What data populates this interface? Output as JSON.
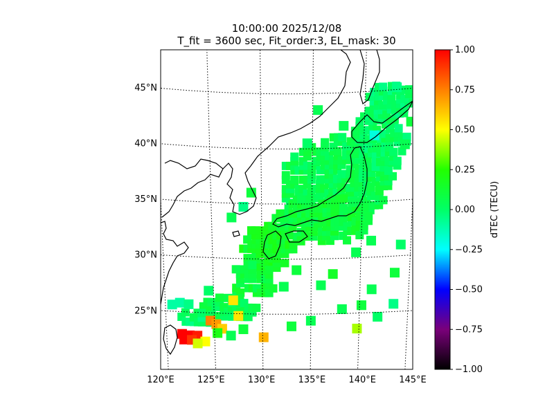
{
  "chart_data": {
    "type": "heatmap",
    "title": "10:00:00 2025/12/08",
    "subtitle": "T_fit = 3600 sec, Fit_order:3, EL_mask: 30",
    "x_ticks": [
      "120°E",
      "125°E",
      "130°E",
      "135°E",
      "140°E",
      "145°E"
    ],
    "y_ticks": [
      "25°N",
      "30°N",
      "35°N",
      "40°N",
      "45°N"
    ],
    "xlim": [
      120,
      145
    ],
    "ylim": [
      20,
      49
    ],
    "grid": true,
    "colorbar": {
      "label": "dTEC (TECU)",
      "range": [
        -1.0,
        1.0
      ],
      "ticks": [
        "1.00",
        "0.75",
        "0.50",
        "0.25",
        "0.00",
        "−0.25",
        "−0.50",
        "−0.75",
        "−1.00"
      ],
      "colormap_stops": [
        {
          "v": -1.0,
          "color": "#000000"
        },
        {
          "v": -0.75,
          "color": "#7a007a"
        },
        {
          "v": -0.5,
          "color": "#0000ff"
        },
        {
          "v": -0.25,
          "color": "#00ffff"
        },
        {
          "v": 0.0,
          "color": "#00ff66"
        },
        {
          "v": 0.25,
          "color": "#22ff00"
        },
        {
          "v": 0.5,
          "color": "#ffff00"
        },
        {
          "v": 0.75,
          "color": "#ff8000"
        },
        {
          "v": 1.0,
          "color": "#ff0000"
        }
      ]
    },
    "blobs": [
      {
        "lon": 137.5,
        "lat": 37.0,
        "rlon": 5.5,
        "rlat": 4.0,
        "value": 0.05
      },
      {
        "lon": 141.5,
        "lat": 40.5,
        "rlon": 2.8,
        "rlat": 3.2,
        "value": 0.02
      },
      {
        "lon": 142.5,
        "lat": 44.0,
        "rlon": 2.5,
        "rlat": 1.6,
        "value": 0.0
      },
      {
        "lon": 136.0,
        "lat": 33.5,
        "rlon": 5.0,
        "rlat": 2.3,
        "value": 0.1
      },
      {
        "lon": 130.5,
        "lat": 31.0,
        "rlon": 2.8,
        "rlat": 2.2,
        "value": 0.15
      },
      {
        "lon": 129.0,
        "lat": 28.0,
        "rlon": 2.5,
        "rlat": 1.5,
        "value": 0.1
      },
      {
        "lon": 126.5,
        "lat": 25.5,
        "rlon": 3.0,
        "rlat": 1.2,
        "value": 0.05
      },
      {
        "lon": 123.0,
        "lat": 24.5,
        "rlon": 1.8,
        "rlat": 0.8,
        "value": 0.0
      }
    ],
    "patches": [
      {
        "lon": 121.6,
        "lat": 23.0,
        "value": 1.0
      },
      {
        "lon": 122.4,
        "lat": 22.9,
        "value": 1.0
      },
      {
        "lon": 123.2,
        "lat": 22.9,
        "value": 0.95
      },
      {
        "lon": 121.8,
        "lat": 22.5,
        "value": 1.0
      },
      {
        "lon": 122.6,
        "lat": 22.5,
        "value": 0.9
      },
      {
        "lon": 124.6,
        "lat": 24.3,
        "value": 0.75
      },
      {
        "lon": 125.2,
        "lat": 24.0,
        "value": 0.7
      },
      {
        "lon": 125.8,
        "lat": 23.6,
        "value": 0.6
      },
      {
        "lon": 124.0,
        "lat": 22.4,
        "value": 0.5
      },
      {
        "lon": 123.2,
        "lat": 22.2,
        "value": 0.45
      },
      {
        "lon": 127.5,
        "lat": 24.8,
        "value": 0.55
      },
      {
        "lon": 127.0,
        "lat": 26.2,
        "value": 0.55
      },
      {
        "lon": 130.1,
        "lat": 22.9,
        "value": 0.65
      },
      {
        "lon": 139.8,
        "lat": 23.6,
        "value": 0.4
      },
      {
        "lon": 120.7,
        "lat": 25.6,
        "value": -0.1
      },
      {
        "lon": 121.5,
        "lat": 25.8,
        "value": -0.1
      },
      {
        "lon": 122.4,
        "lat": 25.7,
        "value": -0.05
      },
      {
        "lon": 143.0,
        "lat": 45.2,
        "value": -0.05
      },
      {
        "lon": 141.0,
        "lat": 41.0,
        "value": -0.2
      },
      {
        "lon": 128.2,
        "lat": 34.7,
        "value": -0.05
      },
      {
        "lon": 137.2,
        "lat": 28.6,
        "value": 0.15
      },
      {
        "lon": 136.0,
        "lat": 27.6,
        "value": 0.05
      },
      {
        "lon": 141.2,
        "lat": 27.1,
        "value": 0.05
      },
      {
        "lon": 143.5,
        "lat": 28.5,
        "value": 0.1
      },
      {
        "lon": 143.5,
        "lat": 25.7,
        "value": -0.05
      },
      {
        "lon": 141.9,
        "lat": 24.6,
        "value": 0.0
      },
      {
        "lon": 138.2,
        "lat": 25.4,
        "value": 0.05
      },
      {
        "lon": 140.2,
        "lat": 25.7,
        "value": 0.1
      },
      {
        "lon": 135.0,
        "lat": 24.4,
        "value": 0.05
      },
      {
        "lon": 133.0,
        "lat": 23.9,
        "value": 0.1
      },
      {
        "lon": 132.2,
        "lat": 27.5,
        "value": 0.05
      },
      {
        "lon": 133.5,
        "lat": 29.0,
        "value": 0.1
      },
      {
        "lon": 139.5,
        "lat": 30.5,
        "value": 0.05
      },
      {
        "lon": 141.0,
        "lat": 31.5,
        "value": 0.05
      },
      {
        "lon": 144.0,
        "lat": 31.0,
        "value": 0.0
      },
      {
        "lon": 127.0,
        "lat": 33.7,
        "value": 0.05
      },
      {
        "lon": 129.0,
        "lat": 36.0,
        "value": 0.1
      },
      {
        "lon": 135.5,
        "lat": 43.5,
        "value": 0.05
      },
      {
        "lon": 134.5,
        "lat": 40.5,
        "value": 0.0
      },
      {
        "lon": 138.0,
        "lat": 42.0,
        "value": 0.05
      },
      {
        "lon": 144.0,
        "lat": 40.0,
        "value": 0.05
      },
      {
        "lon": 144.5,
        "lat": 42.0,
        "value": 0.1
      },
      {
        "lon": 124.5,
        "lat": 27.0,
        "value": 0.0
      },
      {
        "lon": 125.3,
        "lat": 23.2,
        "value": 0.2
      },
      {
        "lon": 128.0,
        "lat": 23.6,
        "value": 0.1
      },
      {
        "lon": 126.7,
        "lat": 23.0,
        "value": 0.05
      }
    ]
  }
}
